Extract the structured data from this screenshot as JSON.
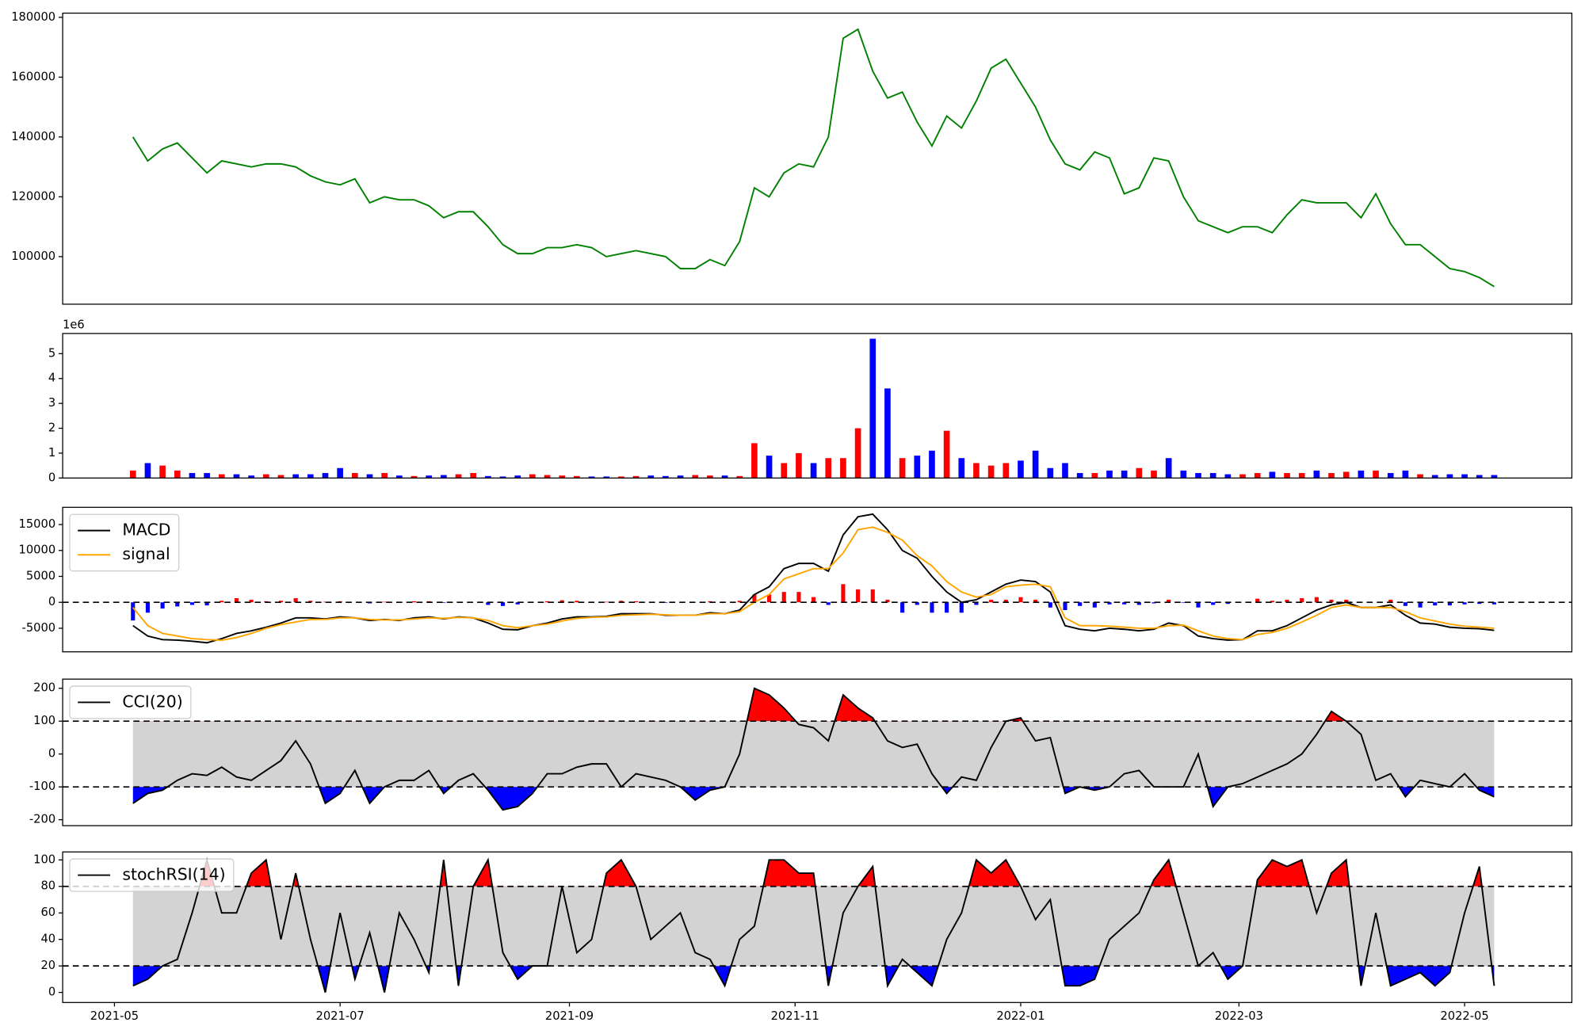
{
  "chart_data": [
    {
      "type": "line",
      "color": "#008000",
      "x": [
        5,
        9,
        13,
        17,
        21,
        25,
        29,
        33,
        37,
        41,
        45,
        49,
        53,
        57,
        61,
        65,
        69,
        73,
        77,
        81,
        85,
        89,
        93,
        97,
        101,
        105,
        109,
        113,
        117,
        121,
        125,
        129,
        133,
        137,
        141,
        145,
        149,
        153,
        157,
        161,
        165,
        169,
        173,
        177,
        181,
        185,
        189,
        193,
        197,
        201,
        205,
        209,
        213,
        217,
        221,
        225,
        229,
        233,
        237,
        241,
        245,
        249,
        253,
        257,
        261,
        265,
        269,
        273,
        277,
        281,
        285,
        289,
        293,
        297,
        301,
        305,
        309,
        313,
        317,
        321,
        325,
        329,
        333,
        337,
        341,
        345,
        349,
        353,
        357,
        361,
        365,
        369,
        373
      ],
      "values": [
        140000,
        132000,
        136000,
        138000,
        133000,
        128000,
        132000,
        131000,
        130000,
        131000,
        131000,
        130000,
        127000,
        125000,
        124000,
        126000,
        118000,
        120000,
        119000,
        119000,
        117000,
        113000,
        115000,
        115000,
        110000,
        104000,
        101000,
        101000,
        103000,
        103000,
        104000,
        103000,
        100000,
        101000,
        102000,
        101000,
        100000,
        96000,
        96000,
        99000,
        97000,
        105000,
        123000,
        120000,
        128000,
        131000,
        130000,
        140000,
        173000,
        176000,
        162000,
        153000,
        155000,
        145000,
        137000,
        147000,
        143000,
        152000,
        163000,
        166000,
        158000,
        150000,
        139000,
        131000,
        129000,
        135000,
        133000,
        121000,
        123000,
        133000,
        132000,
        120000,
        112000,
        110000,
        108000,
        110000,
        110000,
        108000,
        114000,
        119000,
        118000,
        118000,
        118000,
        113000,
        121000,
        111000,
        104000,
        104000,
        100000,
        96000,
        95000,
        93000,
        90000
      ],
      "xlim": [
        -14,
        394
      ],
      "ylim": [
        84100,
        181400
      ],
      "yticks": [
        100000,
        120000,
        140000,
        160000,
        180000
      ]
    },
    {
      "type": "bar",
      "up_color": "#ff0000",
      "down_color": "#0000ff",
      "y_offset_label": "1e6",
      "x": [
        5,
        9,
        13,
        17,
        21,
        25,
        29,
        33,
        37,
        41,
        45,
        49,
        53,
        57,
        61,
        65,
        69,
        73,
        77,
        81,
        85,
        89,
        93,
        97,
        101,
        105,
        109,
        113,
        117,
        121,
        125,
        129,
        133,
        137,
        141,
        145,
        149,
        153,
        157,
        161,
        165,
        169,
        173,
        177,
        181,
        185,
        189,
        193,
        197,
        201,
        205,
        209,
        213,
        217,
        221,
        225,
        229,
        233,
        237,
        241,
        245,
        249,
        253,
        257,
        261,
        265,
        269,
        273,
        277,
        281,
        285,
        289,
        293,
        297,
        301,
        305,
        309,
        313,
        317,
        321,
        325,
        329,
        333,
        337,
        341,
        345,
        349,
        353,
        357,
        361,
        365,
        369,
        373
      ],
      "values": [
        0.3,
        0.6,
        0.5,
        0.3,
        0.2,
        0.2,
        0.15,
        0.15,
        0.1,
        0.15,
        0.12,
        0.15,
        0.15,
        0.2,
        0.4,
        0.2,
        0.15,
        0.2,
        0.1,
        0.08,
        0.1,
        0.12,
        0.15,
        0.2,
        0.08,
        0.06,
        0.1,
        0.15,
        0.12,
        0.1,
        0.08,
        0.06,
        0.06,
        0.06,
        0.08,
        0.1,
        0.08,
        0.1,
        0.12,
        0.1,
        0.1,
        0.08,
        1.4,
        0.9,
        0.6,
        1.0,
        0.6,
        0.8,
        0.8,
        2.0,
        5.6,
        3.6,
        0.8,
        0.9,
        1.1,
        1.9,
        0.8,
        0.6,
        0.5,
        0.6,
        0.7,
        1.1,
        0.4,
        0.6,
        0.2,
        0.2,
        0.3,
        0.3,
        0.4,
        0.3,
        0.8,
        0.3,
        0.2,
        0.2,
        0.15,
        0.15,
        0.2,
        0.25,
        0.2,
        0.2,
        0.3,
        0.2,
        0.25,
        0.3,
        0.3,
        0.2,
        0.3,
        0.15,
        0.12,
        0.15,
        0.15,
        0.12,
        0.12
      ],
      "xlim": [
        -14,
        394
      ],
      "ylim": [
        0,
        5.81
      ],
      "yticks": [
        0,
        1,
        2,
        3,
        4,
        5
      ]
    },
    {
      "type": "line",
      "legend": "upper left",
      "up_color": "#ff0000",
      "down_color": "#0000ff",
      "levels": [
        0
      ],
      "x": [
        5,
        9,
        13,
        17,
        21,
        25,
        29,
        33,
        37,
        41,
        45,
        49,
        53,
        57,
        61,
        65,
        69,
        73,
        77,
        81,
        85,
        89,
        93,
        97,
        101,
        105,
        109,
        113,
        117,
        121,
        125,
        129,
        133,
        137,
        141,
        145,
        149,
        153,
        157,
        161,
        165,
        169,
        173,
        177,
        181,
        185,
        189,
        193,
        197,
        201,
        205,
        209,
        213,
        217,
        221,
        225,
        229,
        233,
        237,
        241,
        245,
        249,
        253,
        257,
        261,
        265,
        269,
        273,
        277,
        281,
        285,
        289,
        293,
        297,
        301,
        305,
        309,
        313,
        317,
        321,
        325,
        329,
        333,
        337,
        341,
        345,
        349,
        353,
        357,
        361,
        365,
        369,
        373
      ],
      "series": [
        {
          "name": "MACD",
          "color": "#000000",
          "values": [
            -4500,
            -6500,
            -7200,
            -7300,
            -7500,
            -7800,
            -7000,
            -6000,
            -5500,
            -4800,
            -4000,
            -3000,
            -3000,
            -3200,
            -2800,
            -3000,
            -3500,
            -3300,
            -3500,
            -3000,
            -2800,
            -3200,
            -2800,
            -3000,
            -4000,
            -5200,
            -5300,
            -4500,
            -4000,
            -3200,
            -2800,
            -2800,
            -2700,
            -2200,
            -2200,
            -2200,
            -2500,
            -2500,
            -2500,
            -2000,
            -2200,
            -1500,
            1500,
            3000,
            6500,
            7500,
            7500,
            6000,
            13000,
            16500,
            17000,
            14000,
            10000,
            8500,
            5000,
            2000,
            0,
            500,
            2000,
            3500,
            4300,
            4000,
            2000,
            -4500,
            -5200,
            -5500,
            -5000,
            -5200,
            -5500,
            -5200,
            -4000,
            -4500,
            -6500,
            -7000,
            -7300,
            -7200,
            -5500,
            -5500,
            -4500,
            -3000,
            -1500,
            -500,
            0,
            -1000,
            -1000,
            -500,
            -2500,
            -4000,
            -4200,
            -4800,
            -5000,
            -5100,
            -5400
          ]
        },
        {
          "name": "signal",
          "color": "#ffa500",
          "values": [
            -1000,
            -4500,
            -6000,
            -6500,
            -7000,
            -7200,
            -7300,
            -6800,
            -6000,
            -5000,
            -4300,
            -3800,
            -3300,
            -3300,
            -3000,
            -3000,
            -3300,
            -3400,
            -3400,
            -3200,
            -3000,
            -3100,
            -2900,
            -3000,
            -3500,
            -4500,
            -4900,
            -4500,
            -4200,
            -3600,
            -3100,
            -2900,
            -2800,
            -2500,
            -2400,
            -2300,
            -2400,
            -2500,
            -2500,
            -2200,
            -2200,
            -1800,
            0,
            1500,
            4500,
            5500,
            6500,
            6500,
            9500,
            14000,
            14500,
            13500,
            12000,
            9000,
            7000,
            4000,
            2000,
            1000,
            1500,
            3000,
            3300,
            3500,
            3000,
            -3000,
            -4500,
            -4500,
            -4600,
            -4800,
            -5000,
            -5000,
            -4500,
            -4400,
            -5500,
            -6500,
            -7000,
            -7200,
            -6200,
            -5800,
            -5000,
            -3800,
            -2500,
            -1000,
            -500,
            -1000,
            -1000,
            -1000,
            -1800,
            -3000,
            -3600,
            -4200,
            -4600,
            -4800,
            -5000
          ]
        }
      ],
      "histogram": [
        -3500,
        -2000,
        -1200,
        -800,
        -500,
        -600,
        300,
        800,
        500,
        200,
        300,
        800,
        300,
        100,
        200,
        0,
        -200,
        100,
        -100,
        200,
        200,
        -100,
        100,
        0,
        -500,
        -700,
        -400,
        0,
        200,
        400,
        300,
        100,
        100,
        300,
        200,
        100,
        -100,
        0,
        0,
        200,
        0,
        300,
        1500,
        1500,
        2000,
        2000,
        1000,
        -500,
        3500,
        2500,
        2500,
        500,
        -2000,
        -500,
        -2000,
        -2000,
        -2000,
        -500,
        500,
        500,
        1000,
        500,
        -1000,
        -1500,
        -700,
        -1000,
        -400,
        -400,
        -500,
        -200,
        500,
        -100,
        -1000,
        -500,
        -300,
        0,
        700,
        300,
        500,
        800,
        1000,
        500,
        500,
        0,
        0,
        500,
        -700,
        -1000,
        -600,
        -600,
        -400,
        -300,
        -400
      ],
      "xlim": [
        -14,
        394
      ],
      "ylim": [
        -9550,
        18320
      ],
      "yticks": [
        -5000,
        0,
        5000,
        10000,
        15000
      ]
    },
    {
      "type": "line",
      "legend": "upper left",
      "levels": [
        100,
        -100
      ],
      "band": [
        -100,
        100
      ],
      "band_color": "#d3d3d3",
      "above_color": "#ff0000",
      "below_color": "#0000ff",
      "x": [
        5,
        9,
        13,
        17,
        21,
        25,
        29,
        33,
        37,
        41,
        45,
        49,
        53,
        57,
        61,
        65,
        69,
        73,
        77,
        81,
        85,
        89,
        93,
        97,
        101,
        105,
        109,
        113,
        117,
        121,
        125,
        129,
        133,
        137,
        141,
        145,
        149,
        153,
        157,
        161,
        165,
        169,
        173,
        177,
        181,
        185,
        189,
        193,
        197,
        201,
        205,
        209,
        213,
        217,
        221,
        225,
        229,
        233,
        237,
        241,
        245,
        249,
        253,
        257,
        261,
        265,
        269,
        273,
        277,
        281,
        285,
        289,
        293,
        297,
        301,
        305,
        309,
        313,
        317,
        321,
        325,
        329,
        333,
        337,
        341,
        345,
        349,
        353,
        357,
        361,
        365,
        369,
        373
      ],
      "series": [
        {
          "name": "CCI(20)",
          "color": "#000000",
          "values": [
            -150,
            -120,
            -110,
            -80,
            -60,
            -65,
            -40,
            -70,
            -80,
            -50,
            -20,
            40,
            -30,
            -150,
            -120,
            -50,
            -150,
            -100,
            -80,
            -80,
            -50,
            -120,
            -80,
            -60,
            -110,
            -170,
            -160,
            -120,
            -60,
            -60,
            -40,
            -30,
            -30,
            -100,
            -60,
            -70,
            -80,
            -100,
            -140,
            -110,
            -100,
            0,
            200,
            180,
            140,
            90,
            80,
            40,
            180,
            140,
            110,
            40,
            20,
            30,
            -60,
            -120,
            -70,
            -80,
            20,
            100,
            110,
            40,
            50,
            -120,
            -100,
            -110,
            -100,
            -60,
            -50,
            -100,
            -100,
            -100,
            0,
            -160,
            -100,
            -90,
            -70,
            -50,
            -30,
            0,
            60,
            130,
            100,
            60,
            -80,
            -60,
            -130,
            -80,
            -90,
            -100,
            -60,
            -110,
            -130
          ]
        }
      ],
      "xlim": [
        -14,
        394
      ],
      "ylim": [
        -218,
        228
      ],
      "yticks": [
        -200,
        -100,
        0,
        100,
        200
      ]
    },
    {
      "type": "line",
      "legend": "upper left",
      "levels": [
        80,
        20
      ],
      "band": [
        20,
        80
      ],
      "band_color": "#d3d3d3",
      "above_color": "#ff0000",
      "below_color": "#0000ff",
      "x": [
        5,
        9,
        13,
        17,
        21,
        25,
        29,
        33,
        37,
        41,
        45,
        49,
        53,
        57,
        61,
        65,
        69,
        73,
        77,
        81,
        85,
        89,
        93,
        97,
        101,
        105,
        109,
        113,
        117,
        121,
        125,
        129,
        133,
        137,
        141,
        145,
        149,
        153,
        157,
        161,
        165,
        169,
        173,
        177,
        181,
        185,
        189,
        193,
        197,
        201,
        205,
        209,
        213,
        217,
        221,
        225,
        229,
        233,
        237,
        241,
        245,
        249,
        253,
        257,
        261,
        265,
        269,
        273,
        277,
        281,
        285,
        289,
        293,
        297,
        301,
        305,
        309,
        313,
        317,
        321,
        325,
        329,
        333,
        337,
        341,
        345,
        349,
        353,
        357,
        361,
        365,
        369,
        373
      ],
      "series": [
        {
          "name": "stochRSI(14)",
          "color": "#000000",
          "values": [
            5,
            10,
            20,
            25,
            60,
            100,
            60,
            60,
            90,
            100,
            40,
            90,
            40,
            0,
            60,
            10,
            45,
            0,
            60,
            40,
            15,
            100,
            5,
            80,
            100,
            30,
            10,
            20,
            20,
            80,
            30,
            40,
            90,
            100,
            80,
            40,
            50,
            60,
            30,
            25,
            5,
            40,
            50,
            100,
            100,
            90,
            90,
            5,
            60,
            80,
            95,
            5,
            25,
            15,
            5,
            40,
            60,
            100,
            90,
            100,
            80,
            55,
            70,
            5,
            5,
            10,
            40,
            50,
            60,
            85,
            100,
            60,
            20,
            30,
            10,
            20,
            85,
            100,
            95,
            100,
            60,
            90,
            100,
            5,
            60,
            5,
            10,
            15,
            5,
            15,
            60,
            95,
            5
          ]
        }
      ],
      "xlim": [
        -14,
        394
      ],
      "ylim": [
        -7.6,
        106
      ],
      "yticks": [
        0,
        20,
        40,
        60,
        80,
        100
      ],
      "xticks": [
        {
          "value": 0,
          "label": "2021-05"
        },
        {
          "value": 61,
          "label": "2021-07"
        },
        {
          "value": 123,
          "label": "2021-09"
        },
        {
          "value": 184,
          "label": "2021-11"
        },
        {
          "value": 245,
          "label": "2022-01"
        },
        {
          "value": 304,
          "label": "2022-03"
        },
        {
          "value": 365,
          "label": "2022-05"
        }
      ]
    }
  ]
}
